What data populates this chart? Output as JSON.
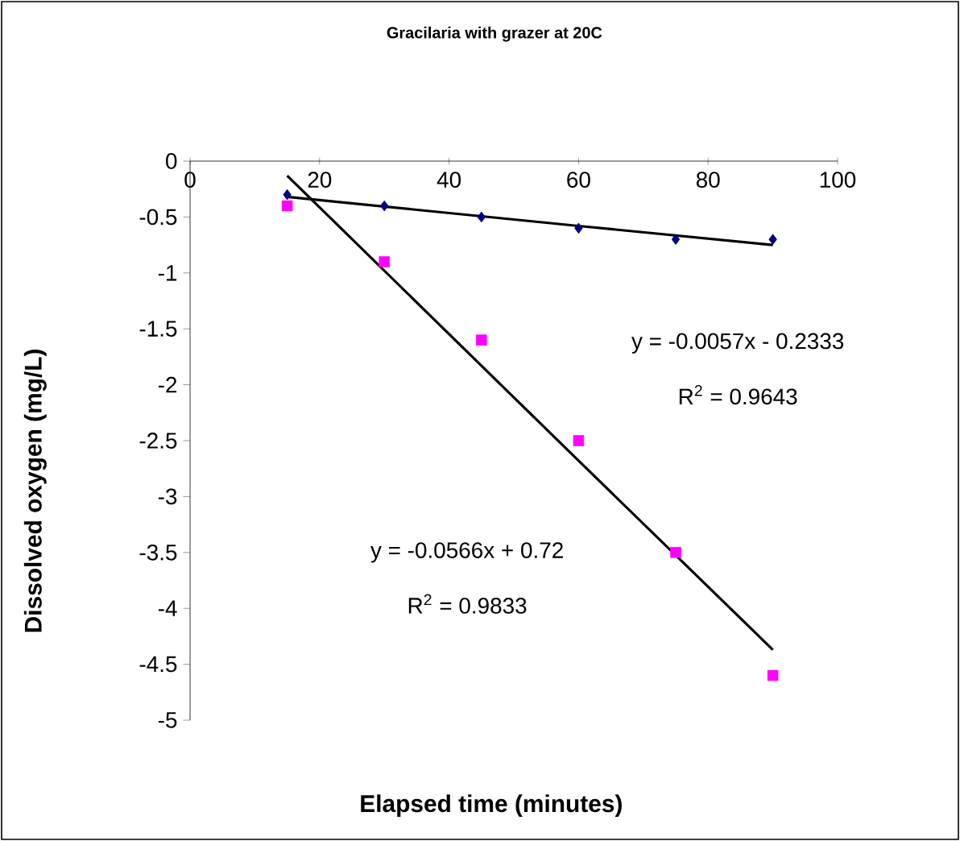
{
  "chart_data": {
    "type": "scatter",
    "title": "Gracilaria with grazer at 20C",
    "xlabel": "Elapsed time (minutes)",
    "ylabel": "Dissolved oxygen (mg/L)",
    "x": [
      15,
      30,
      45,
      60,
      75,
      90
    ],
    "series": [
      {
        "color": "#000080",
        "marker": "diamond",
        "values": [
          -0.3,
          -0.4,
          -0.5,
          -0.6,
          -0.7,
          -0.7
        ]
      },
      {
        "color": "#ff00ff",
        "marker": "square",
        "values": [
          -0.4,
          -0.9,
          -1.6,
          -2.5,
          -3.5,
          -4.6
        ]
      },
      {
        "type": "line",
        "color": "#000000",
        "marker": "none",
        "x": [
          15,
          60,
          90
        ],
        "values": [
          -0.32,
          -0.58,
          -0.75
        ]
      },
      {
        "type": "line",
        "color": "#000000",
        "marker": "none",
        "x": [
          15,
          60,
          90
        ],
        "values": [
          -0.13,
          -2.68,
          -4.37
        ]
      }
    ],
    "annotations": [
      "y = -0.0057x - 0.2333",
      "R$^{2}$ = 0.9643",
      "y = -0.0566x + 0.72",
      "R$^{2}$ = 0.9833"
    ],
    "xlim": [
      0,
      100
    ],
    "xticks": [
      0,
      20,
      40,
      60,
      80,
      100
    ],
    "ylim": [
      -5,
      0
    ],
    "yticks": [
      -5,
      -4.5,
      -4,
      -3.5,
      -3,
      -2.5,
      -2,
      -1.5,
      -1,
      -0.5,
      0
    ],
    "grid": false
  }
}
